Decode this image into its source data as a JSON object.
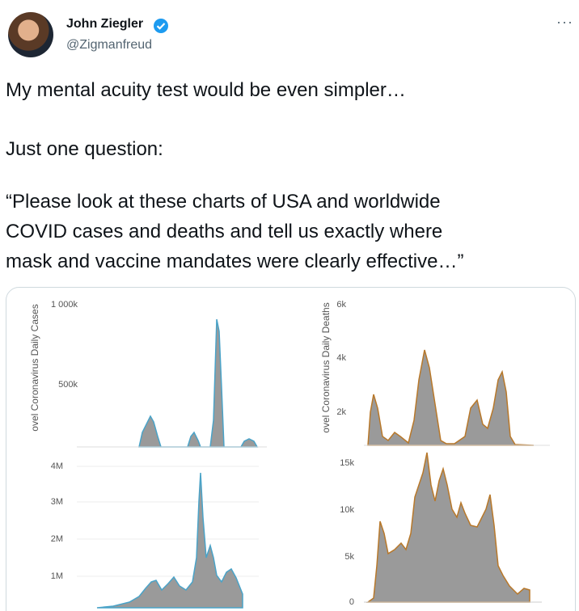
{
  "tweet": {
    "author": {
      "name": "John Ziegler",
      "handle": "@Zigmanfreud"
    },
    "text": [
      "My mental acuity test would be even simpler…",
      "Just one question:",
      "“Please look at these charts of USA and worldwide",
      "COVID cases and deaths and tell us exactly where",
      "mask and vaccine mandates were clearly effective…”"
    ]
  },
  "media": {
    "panels": [
      {
        "axis_label": "ovel Coronavirus Daily Cases",
        "ticks": [
          "1 000k",
          "500k"
        ]
      },
      {
        "axis_label": "ovel Coronavirus Daily Deaths",
        "ticks": [
          "6k",
          "4k",
          "2k"
        ]
      },
      {
        "ticks": [
          "4M",
          "3M",
          "2M",
          "1M"
        ]
      },
      {
        "ticks": [
          "15k",
          "10k",
          "5k",
          "0"
        ]
      }
    ]
  }
}
